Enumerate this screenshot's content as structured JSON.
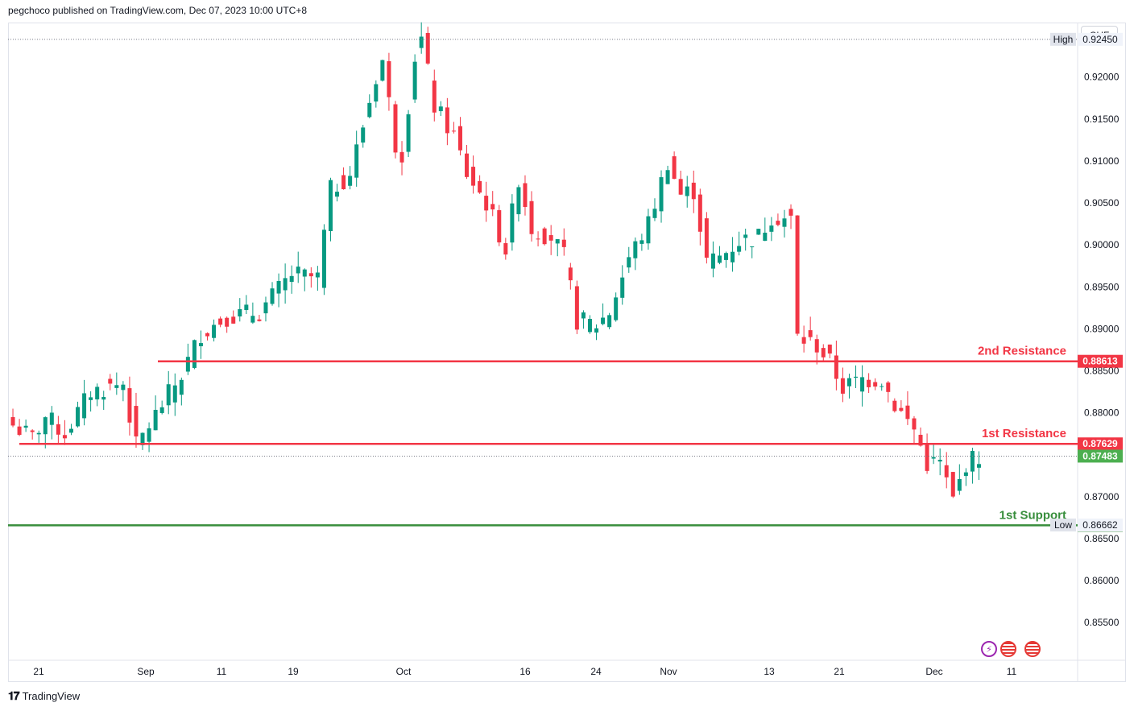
{
  "header": {
    "text": "pegchoco published on TradingView.com, Dec 07, 2023 10:00 UTC+8"
  },
  "footer": {
    "brand": "TradingView",
    "logo": "tradingview-logo-icon"
  },
  "axis": {
    "currency": "CHF"
  },
  "chart_data": {
    "type": "candlestick",
    "y_range": [
      0.8505,
      0.9265
    ],
    "y_ticks": [
      "0.92000",
      "0.91500",
      "0.91000",
      "0.90500",
      "0.90000",
      "0.89500",
      "0.89000",
      "0.88500",
      "0.88000",
      "0.87500",
      "0.87000",
      "0.86500",
      "0.86000",
      "0.85500"
    ],
    "x_ticks": [
      "21",
      "Sep",
      "11",
      "19",
      "Oct",
      "16",
      "24",
      "Nov",
      "13",
      "21",
      "Dec",
      "11"
    ],
    "x_span": [
      "Aug 16",
      "Dec 07"
    ],
    "anchors": [
      {
        "x": 0,
        "y": 0.8785
      },
      {
        "x": 3,
        "y": 0.877
      },
      {
        "x": 5,
        "y": 0.8795
      },
      {
        "x": 8,
        "y": 0.8775
      },
      {
        "x": 12,
        "y": 0.8825
      },
      {
        "x": 17,
        "y": 0.8835
      },
      {
        "x": 19,
        "y": 0.876
      },
      {
        "x": 23,
        "y": 0.881
      },
      {
        "x": 26,
        "y": 0.8845
      },
      {
        "x": 29,
        "y": 0.8895
      },
      {
        "x": 33,
        "y": 0.8915
      },
      {
        "x": 38,
        "y": 0.892
      },
      {
        "x": 43,
        "y": 0.8965
      },
      {
        "x": 47,
        "y": 0.896
      },
      {
        "x": 49,
        "y": 0.9065
      },
      {
        "x": 52,
        "y": 0.9085
      },
      {
        "x": 56,
        "y": 0.92
      },
      {
        "x": 57,
        "y": 0.922
      },
      {
        "x": 59,
        "y": 0.912
      },
      {
        "x": 60,
        "y": 0.911
      },
      {
        "x": 62,
        "y": 0.9225
      },
      {
        "x": 63,
        "y": 0.9245
      },
      {
        "x": 65,
        "y": 0.9165
      },
      {
        "x": 68,
        "y": 0.913
      },
      {
        "x": 70,
        "y": 0.9085
      },
      {
        "x": 73,
        "y": 0.905
      },
      {
        "x": 76,
        "y": 0.8995
      },
      {
        "x": 78,
        "y": 0.908
      },
      {
        "x": 80,
        "y": 0.902
      },
      {
        "x": 83,
        "y": 0.901
      },
      {
        "x": 85,
        "y": 0.8985
      },
      {
        "x": 87,
        "y": 0.891
      },
      {
        "x": 90,
        "y": 0.8905
      },
      {
        "x": 92,
        "y": 0.892
      },
      {
        "x": 95,
        "y": 0.8985
      },
      {
        "x": 98,
        "y": 0.9025
      },
      {
        "x": 101,
        "y": 0.91
      },
      {
        "x": 103,
        "y": 0.906
      },
      {
        "x": 105,
        "y": 0.9065
      },
      {
        "x": 107,
        "y": 0.898
      },
      {
        "x": 109,
        "y": 0.8985
      },
      {
        "x": 112,
        "y": 0.9005
      },
      {
        "x": 115,
        "y": 0.901
      },
      {
        "x": 117,
        "y": 0.9035
      },
      {
        "x": 120,
        "y": 0.903
      },
      {
        "x": 121,
        "y": 0.889
      },
      {
        "x": 124,
        "y": 0.888
      },
      {
        "x": 126,
        "y": 0.886
      },
      {
        "x": 128,
        "y": 0.883
      },
      {
        "x": 131,
        "y": 0.884
      },
      {
        "x": 134,
        "y": 0.884
      },
      {
        "x": 136,
        "y": 0.881
      },
      {
        "x": 139,
        "y": 0.878
      },
      {
        "x": 141,
        "y": 0.874
      },
      {
        "x": 143,
        "y": 0.874
      },
      {
        "x": 145,
        "y": 0.8695
      },
      {
        "x": 147,
        "y": 0.874
      },
      {
        "x": 149,
        "y": 0.8748
      }
    ],
    "levels": [
      {
        "name": "2nd Resistance",
        "value": "0.88613",
        "color": "#f23645"
      },
      {
        "name": "1st Resistance",
        "value": "0.87629",
        "color": "#f23645"
      },
      {
        "name": "1st Support",
        "value": "0.86658",
        "color": "#388e3c"
      }
    ],
    "markers": [
      {
        "label": "High",
        "value": "0.92450"
      },
      {
        "label": "Low",
        "value": "0.86662"
      }
    ],
    "last_price": {
      "value": "0.87483",
      "color": "#4caf50"
    },
    "up_color": "#089981",
    "down_color": "#f23645"
  }
}
